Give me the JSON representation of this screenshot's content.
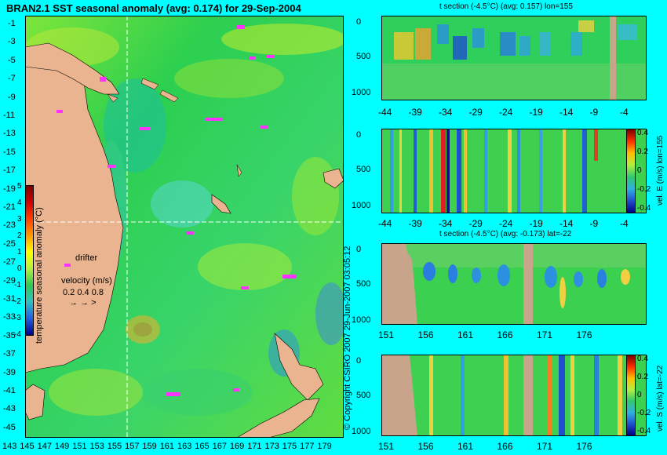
{
  "map": {
    "title": "BRAN2.1 SST seasonal anomaly (avg: 0.174) for 29-Sep-2004",
    "lat_ticks": [
      "-1",
      "-3",
      "-5",
      "-7",
      "-9",
      "-11",
      "-13",
      "-15",
      "-17",
      "-19",
      "-21",
      "-23",
      "-25",
      "-27",
      "-29",
      "-31",
      "-33",
      "-35",
      "-37",
      "-39",
      "-41",
      "-43",
      "-45"
    ],
    "lon_ticks": [
      "143",
      "145",
      "147",
      "149",
      "151",
      "153",
      "155",
      "157",
      "159",
      "161",
      "163",
      "165",
      "167",
      "169",
      "171",
      "173",
      "175",
      "177",
      "179"
    ],
    "colorbar_ticks": [
      "5",
      "4",
      "3",
      "2",
      "1",
      "0",
      "-1",
      "-2",
      "-3",
      "-4"
    ],
    "colorbar_label": "temperature seasonal anomaly (°C)",
    "drifter_label": "drifter",
    "velocity_label": "velocity (m/s)",
    "velocity_values": "0.2 0.4 0.8",
    "copyright": "© Copyright CSIRO 2007 29-Jun-2007 03:05:12"
  },
  "panels": [
    {
      "title": "t section (-4.5°C) (avg: 0.157) lon=155",
      "y_ticks": [
        "0",
        "500",
        "1000"
      ],
      "x_ticks": [
        "-44",
        "-39",
        "-34",
        "-29",
        "-24",
        "-19",
        "-14",
        "-9",
        "-4"
      ]
    },
    {
      "title": "",
      "y_ticks": [
        "0",
        "500",
        "1000"
      ],
      "x_ticks": [
        "-44",
        "-39",
        "-34",
        "-29",
        "-24",
        "-19",
        "-14",
        "-9",
        "-4"
      ],
      "cbar_ticks": [
        "0.4",
        "0.2",
        "0",
        "-0.2",
        "-0.4"
      ],
      "cbar_label": "vel. E (m/s) lon=155"
    },
    {
      "title": "t section (-4.5°C) (avg: -0.173) lat=-22",
      "y_ticks": [
        "0",
        "500",
        "1000"
      ],
      "x_ticks": [
        "151",
        "156",
        "161",
        "166",
        "171",
        "176"
      ]
    },
    {
      "title": "",
      "y_ticks": [
        "0",
        "500",
        "1000"
      ],
      "x_ticks": [
        "151",
        "156",
        "161",
        "166",
        "171",
        "176"
      ],
      "cbar_ticks": [
        "0.4",
        "0.2",
        "0",
        "-0.2",
        "-0.4"
      ],
      "cbar_label": "vel. S (m/s) lat=-22"
    }
  ],
  "colors": {
    "background": "#00ffff",
    "ocean": "#22c84a",
    "land": "#e9b48f",
    "marker": "#ff33ff"
  }
}
